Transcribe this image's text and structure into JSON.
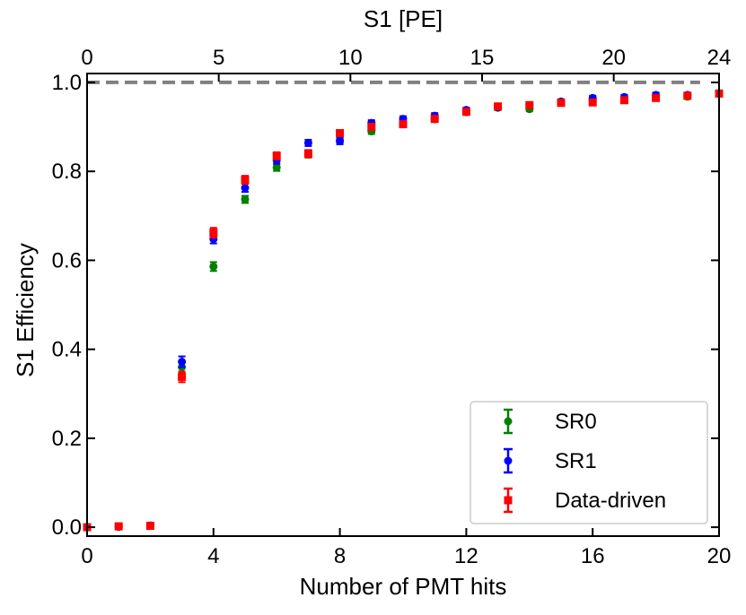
{
  "chart_data": {
    "type": "scatter",
    "title": "",
    "xlabel": "Number of PMT hits",
    "ylabel": "S1 Efficiency",
    "top_xlabel": "S1 [PE]",
    "xlim": [
      0,
      20
    ],
    "ylim": [
      -0.02,
      1.02
    ],
    "top_xlim": [
      0,
      24
    ],
    "xticks": [
      0,
      4,
      8,
      12,
      16,
      20
    ],
    "xtick_labels": [
      "0",
      "4",
      "8",
      "12",
      "16",
      "20"
    ],
    "yticks": [
      0.0,
      0.2,
      0.4,
      0.6,
      0.8,
      1.0
    ],
    "ytick_labels": [
      "0.0",
      "0.2",
      "0.4",
      "0.6",
      "0.8",
      "1.0"
    ],
    "top_xticks": [
      0,
      5,
      10,
      15,
      20,
      24
    ],
    "top_xtick_labels": [
      "0",
      "5",
      "10",
      "15",
      "20",
      "24"
    ],
    "reference_line": {
      "y": 1.0,
      "color": "#808080",
      "style": "dashed"
    },
    "legend": {
      "placement": "lower-right"
    },
    "series": [
      {
        "name": "SR0",
        "color": "#008000",
        "marker": "circle",
        "x": [
          0,
          1,
          2,
          3,
          4,
          5,
          6,
          7,
          8,
          9,
          10,
          11,
          12,
          13,
          14,
          15,
          16,
          17,
          18,
          19,
          20
        ],
        "y": [
          0.0,
          0.001,
          0.003,
          0.36,
          0.586,
          0.737,
          0.809,
          0.838,
          0.87,
          0.89,
          0.912,
          0.917,
          0.933,
          0.943,
          0.94,
          0.956,
          0.962,
          0.962,
          0.968,
          0.968,
          0.975
        ],
        "err": [
          0.002,
          0.002,
          0.004,
          0.012,
          0.01,
          0.008,
          0.008,
          0.007,
          0.007,
          0.006,
          0.006,
          0.006,
          0.005,
          0.005,
          0.005,
          0.005,
          0.005,
          0.005,
          0.005,
          0.005,
          0.004
        ]
      },
      {
        "name": "SR1",
        "color": "#0000ff",
        "marker": "circle",
        "x": [
          0,
          1,
          2,
          3,
          4,
          5,
          6,
          7,
          8,
          9,
          10,
          11,
          12,
          13,
          14,
          15,
          16,
          17,
          18,
          19,
          20
        ],
        "y": [
          0.0,
          0.001,
          0.004,
          0.372,
          0.648,
          0.763,
          0.825,
          0.864,
          0.868,
          0.909,
          0.918,
          0.925,
          0.938,
          0.944,
          0.949,
          0.957,
          0.965,
          0.967,
          0.972,
          0.972,
          0.975
        ],
        "err": [
          0.002,
          0.002,
          0.004,
          0.012,
          0.01,
          0.009,
          0.008,
          0.007,
          0.007,
          0.006,
          0.006,
          0.006,
          0.005,
          0.005,
          0.005,
          0.005,
          0.005,
          0.005,
          0.005,
          0.005,
          0.004
        ]
      },
      {
        "name": "Data-driven",
        "color": "#ff0000",
        "marker": "square",
        "x": [
          0,
          1,
          2,
          3,
          4,
          5,
          6,
          7,
          8,
          9,
          10,
          11,
          12,
          13,
          14,
          15,
          16,
          17,
          18,
          19,
          20
        ],
        "y": [
          0.0,
          0.002,
          0.003,
          0.338,
          0.662,
          0.781,
          0.835,
          0.84,
          0.886,
          0.9,
          0.906,
          0.918,
          0.934,
          0.946,
          0.949,
          0.954,
          0.955,
          0.96,
          0.965,
          0.97,
          0.975
        ],
        "err": [
          0.002,
          0.002,
          0.004,
          0.012,
          0.011,
          0.009,
          0.008,
          0.008,
          0.007,
          0.006,
          0.006,
          0.006,
          0.005,
          0.005,
          0.005,
          0.005,
          0.005,
          0.005,
          0.005,
          0.005,
          0.004
        ]
      }
    ]
  }
}
